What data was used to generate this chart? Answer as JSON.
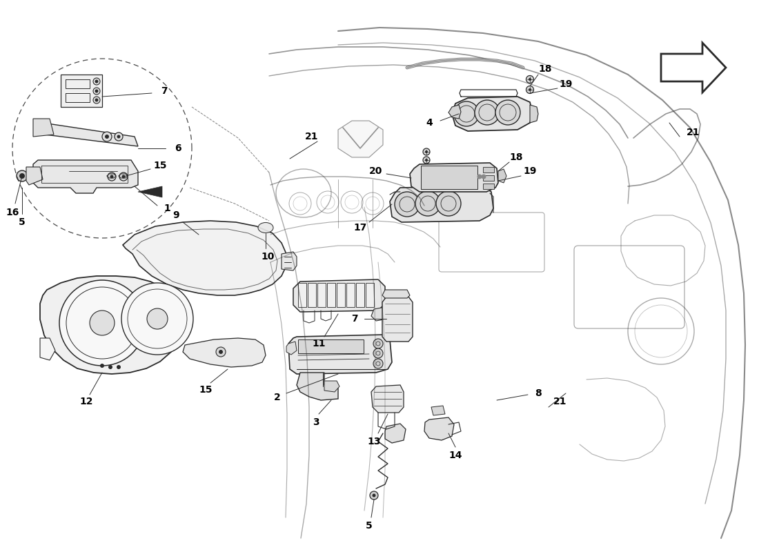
{
  "bg": "#ffffff",
  "lc": "#2a2a2a",
  "lc_light": "#888888",
  "figsize": [
    11.0,
    8.0
  ],
  "dpi": 100,
  "xlim": [
    0,
    1100
  ],
  "ylim": [
    0,
    800
  ]
}
